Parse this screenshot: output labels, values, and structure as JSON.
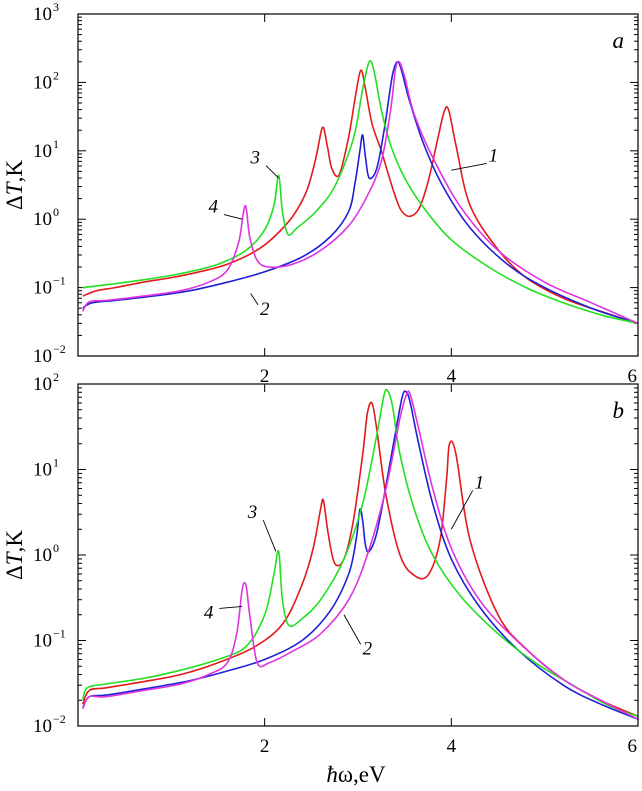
{
  "figure": {
    "xlabel_hbar": "ħ",
    "xlabel_rest": "ω,eV"
  },
  "chart_data": [
    {
      "type": "line",
      "panel_letter": "a",
      "ylabel_prefix": "Δ",
      "ylabel_var": "T",
      "ylabel_suffix": ",K",
      "xlim": [
        0,
        6
      ],
      "ylim": [
        0.01,
        1000
      ],
      "yscale": "log",
      "x_ticks": [
        2,
        4,
        6
      ],
      "y_ticks": [
        {
          "value": 0.01,
          "base": "10",
          "exp": "−2"
        },
        {
          "value": 0.1,
          "base": "10",
          "exp": "−1"
        },
        {
          "value": 1,
          "base": "10",
          "exp": "0"
        },
        {
          "value": 10,
          "base": "10",
          "exp": "1"
        },
        {
          "value": 100,
          "base": "10",
          "exp": "2"
        },
        {
          "value": 1000,
          "base": "10",
          "exp": "3"
        }
      ],
      "colors": {
        "1": "#e31a1c",
        "2": "#1f1fd6",
        "3": "#22e022",
        "4": "#e033e0"
      },
      "curve_labels": [
        {
          "text": "1",
          "at": [
            4.4,
            7.0
          ],
          "to": [
            4.0,
            5.2
          ]
        },
        {
          "text": "2",
          "at": [
            1.95,
            0.06
          ],
          "to": [
            1.85,
            0.082
          ]
        },
        {
          "text": "3",
          "at": [
            1.95,
            6.5
          ],
          "to": [
            2.15,
            4.0
          ]
        },
        {
          "text": "4",
          "at": [
            1.5,
            1.25
          ],
          "to": [
            1.76,
            1.0
          ]
        }
      ],
      "series": [
        {
          "name": "1",
          "x": [
            0.05,
            0.2,
            0.4,
            0.7,
            1.0,
            1.3,
            1.6,
            1.9,
            2.1,
            2.3,
            2.45,
            2.55,
            2.62,
            2.67,
            2.72,
            2.8,
            2.9,
            2.97,
            3.03,
            3.08,
            3.15,
            3.25,
            3.35,
            3.42,
            3.47,
            3.55,
            3.65,
            3.75,
            3.85,
            3.92,
            3.97,
            4.05,
            4.2,
            4.5,
            4.8,
            5.2,
            5.6,
            6.0
          ],
          "y": [
            0.075,
            0.09,
            0.1,
            0.12,
            0.14,
            0.17,
            0.22,
            0.34,
            0.55,
            1.1,
            2.6,
            8,
            22,
            12,
            5.5,
            4.5,
            16,
            60,
            150,
            80,
            25,
            10,
            3.5,
            1.8,
            1.3,
            1.1,
            1.4,
            3.5,
            14,
            36,
            40,
            12,
            1.6,
            0.36,
            0.14,
            0.07,
            0.045,
            0.03
          ]
        },
        {
          "name": "2",
          "x": [
            0.05,
            0.15,
            0.4,
            0.8,
            1.2,
            1.6,
            2.0,
            2.4,
            2.7,
            2.9,
            2.97,
            3.02,
            3.05,
            3.08,
            3.12,
            3.2,
            3.28,
            3.35,
            3.38,
            3.42,
            3.46,
            3.55,
            3.7,
            3.9,
            4.2,
            4.6,
            5.0,
            5.5,
            6.0
          ],
          "y": [
            0.05,
            0.06,
            0.065,
            0.075,
            0.09,
            0.12,
            0.17,
            0.28,
            0.55,
            1.3,
            3.5,
            10,
            17,
            8,
            4,
            5.5,
            20,
            90,
            150,
            200,
            160,
            55,
            13,
            3.2,
            0.75,
            0.22,
            0.1,
            0.05,
            0.03
          ]
        },
        {
          "name": "3",
          "x": [
            0.05,
            0.3,
            0.7,
            1.1,
            1.5,
            1.8,
            2.0,
            2.1,
            2.15,
            2.19,
            2.25,
            2.35,
            2.55,
            2.75,
            2.95,
            3.05,
            3.12,
            3.17,
            3.25,
            3.35,
            3.5,
            3.7,
            4.0,
            4.4,
            4.8,
            5.2,
            5.6,
            6.0
          ],
          "y": [
            0.1,
            0.11,
            0.13,
            0.16,
            0.22,
            0.35,
            0.7,
            1.6,
            4.4,
            1.3,
            0.6,
            0.75,
            1.3,
            3,
            15,
            80,
            200,
            150,
            40,
            12,
            4,
            1.5,
            0.5,
            0.2,
            0.1,
            0.06,
            0.04,
            0.03
          ]
        },
        {
          "name": "4",
          "x": [
            0.05,
            0.12,
            0.3,
            0.7,
            1.1,
            1.4,
            1.6,
            1.72,
            1.77,
            1.8,
            1.84,
            1.92,
            2.05,
            2.3,
            2.6,
            2.9,
            3.1,
            3.25,
            3.35,
            3.4,
            3.44,
            3.5,
            3.6,
            3.8,
            4.1,
            4.5,
            5.0,
            5.5,
            6.0
          ],
          "y": [
            0.045,
            0.062,
            0.065,
            0.075,
            0.09,
            0.12,
            0.18,
            0.45,
            1.2,
            1.5,
            0.55,
            0.25,
            0.2,
            0.22,
            0.35,
            0.8,
            2.2,
            7,
            40,
            150,
            200,
            120,
            35,
            8,
            1.5,
            0.35,
            0.12,
            0.06,
            0.03
          ]
        }
      ]
    },
    {
      "type": "line",
      "panel_letter": "b",
      "ylabel_prefix": "Δ",
      "ylabel_var": "T",
      "ylabel_suffix": ",K",
      "xlim": [
        0,
        6
      ],
      "ylim": [
        0.01,
        100
      ],
      "yscale": "log",
      "x_ticks": [
        2,
        4,
        6
      ],
      "y_ticks": [
        {
          "value": 0.01,
          "base": "10",
          "exp": "−2"
        },
        {
          "value": 0.1,
          "base": "10",
          "exp": "−1"
        },
        {
          "value": 1,
          "base": "10",
          "exp": "0"
        },
        {
          "value": 10,
          "base": "10",
          "exp": "1"
        },
        {
          "value": 100,
          "base": "10",
          "exp": "2"
        }
      ],
      "colors": {
        "1": "#e31a1c",
        "2": "#1f1fd6",
        "3": "#22e022",
        "4": "#e033e0"
      },
      "curve_labels": [
        {
          "text": "1",
          "at": [
            4.25,
            6.0
          ],
          "to": [
            4.0,
            2.0
          ]
        },
        {
          "text": "2",
          "at": [
            3.05,
            0.095
          ],
          "to": [
            2.85,
            0.2
          ]
        },
        {
          "text": "3",
          "at": [
            1.92,
            2.7
          ],
          "to": [
            2.12,
            1.1
          ]
        },
        {
          "text": "4",
          "at": [
            1.45,
            0.25
          ],
          "to": [
            1.76,
            0.25
          ]
        }
      ],
      "series": [
        {
          "name": "1",
          "x": [
            0.05,
            0.12,
            0.3,
            0.7,
            1.1,
            1.5,
            1.9,
            2.2,
            2.4,
            2.52,
            2.6,
            2.63,
            2.68,
            2.75,
            2.85,
            2.95,
            3.05,
            3.1,
            3.15,
            3.2,
            3.3,
            3.45,
            3.6,
            3.75,
            3.88,
            3.95,
            3.98,
            4.05,
            4.2,
            4.5,
            4.8,
            5.2,
            5.6,
            6.0
          ],
          "y": [
            0.018,
            0.026,
            0.028,
            0.033,
            0.04,
            0.055,
            0.085,
            0.16,
            0.45,
            1.2,
            3.5,
            4.3,
            1.8,
            0.8,
            0.9,
            2.5,
            15,
            45,
            60,
            30,
            5,
            1,
            0.58,
            0.58,
            1.5,
            8,
            20,
            15,
            1.5,
            0.2,
            0.08,
            0.035,
            0.02,
            0.013
          ]
        },
        {
          "name": "2",
          "x": [
            0.05,
            0.12,
            0.3,
            0.7,
            1.2,
            1.6,
            2.0,
            2.4,
            2.7,
            2.9,
            2.98,
            3.02,
            3.05,
            3.08,
            3.12,
            3.2,
            3.3,
            3.42,
            3.48,
            3.52,
            3.56,
            3.65,
            3.8,
            4.0,
            4.3,
            4.7,
            5.2,
            5.6,
            6.0
          ],
          "y": [
            0.016,
            0.022,
            0.023,
            0.027,
            0.034,
            0.044,
            0.06,
            0.1,
            0.22,
            0.6,
            1.5,
            3.4,
            2.5,
            1.3,
            1.1,
            1.8,
            6.5,
            35,
            75,
            80,
            60,
            20,
            4,
            0.9,
            0.25,
            0.08,
            0.03,
            0.018,
            0.012
          ]
        },
        {
          "name": "3",
          "x": [
            0.05,
            0.1,
            0.3,
            0.7,
            1.1,
            1.5,
            1.8,
            2.0,
            2.1,
            2.15,
            2.19,
            2.26,
            2.4,
            2.6,
            2.85,
            3.05,
            3.2,
            3.28,
            3.32,
            3.37,
            3.45,
            3.6,
            3.8,
            4.1,
            4.5,
            4.9,
            5.3,
            5.7,
            6.0
          ],
          "y": [
            0.02,
            0.028,
            0.031,
            0.036,
            0.045,
            0.06,
            0.085,
            0.2,
            0.6,
            1.1,
            0.3,
            0.15,
            0.18,
            0.3,
            0.9,
            4,
            25,
            75,
            82,
            55,
            15,
            3.5,
            1,
            0.33,
            0.12,
            0.055,
            0.03,
            0.017,
            0.013
          ]
        },
        {
          "name": "4",
          "x": [
            0.05,
            0.12,
            0.3,
            0.7,
            1.1,
            1.4,
            1.6,
            1.7,
            1.76,
            1.8,
            1.84,
            1.92,
            2.05,
            2.3,
            2.6,
            2.9,
            3.1,
            3.3,
            3.45,
            3.52,
            3.56,
            3.65,
            3.8,
            4.0,
            4.3,
            4.7,
            5.2,
            5.6,
            6.0
          ],
          "y": [
            0.016,
            0.022,
            0.022,
            0.026,
            0.031,
            0.04,
            0.055,
            0.12,
            0.4,
            0.44,
            0.2,
            0.055,
            0.055,
            0.075,
            0.12,
            0.3,
            1,
            6,
            40,
            75,
            75,
            30,
            6,
            1.2,
            0.3,
            0.1,
            0.035,
            0.02,
            0.012
          ]
        }
      ]
    }
  ]
}
